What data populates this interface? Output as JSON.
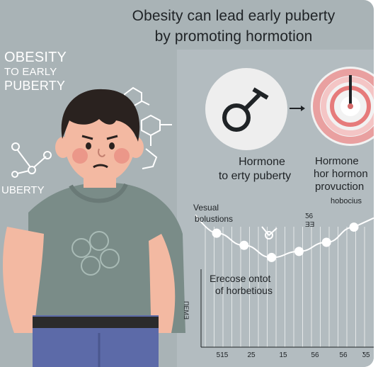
{
  "title": {
    "line1": "Obesity can lead early puberty",
    "line2": "by promoting hormotion"
  },
  "left_panel": {
    "big": "OBESITY",
    "small": "TO EARLY",
    "mid": "PUBERTY",
    "side_label": "UBERTY"
  },
  "center_labels": {
    "left_hormone_1": "Hormone",
    "left_hormone_2": "to erty puberty",
    "right_hormone_1": "Hormone",
    "right_hormone_2": "hor hormon",
    "right_hormone_3": "provuction"
  },
  "chart_area": {
    "note_small": "hobocius",
    "left_note_1": "Vesual",
    "left_note_2": "bolustions",
    "chart_note_1": "Erecose ontot",
    "chart_note_2": "of horbetious",
    "top_ticks": [
      "Ƽ6",
      "ƎƎ"
    ],
    "y_label": "ΠΕΜƎ",
    "x_ticks": [
      "515",
      "25",
      "15",
      "56",
      "56",
      "Ƽ5"
    ]
  },
  "colors": {
    "background": "#a9b3b6",
    "body_shirt": "#7a8c88",
    "jeans": "#5c6aa8",
    "skin": "#f3b9a2",
    "hair": "#2a221f",
    "accent_red": "#d56a6a"
  },
  "chart_data": {
    "type": "line",
    "x": [
      1,
      2,
      3,
      4,
      5,
      6
    ],
    "y": [
      2.6,
      2.4,
      2.2,
      2.3,
      2.45,
      2.7
    ],
    "title": "",
    "xlabel": "",
    "ylabel": "",
    "ylim": [
      0,
      3
    ],
    "grid": true
  }
}
